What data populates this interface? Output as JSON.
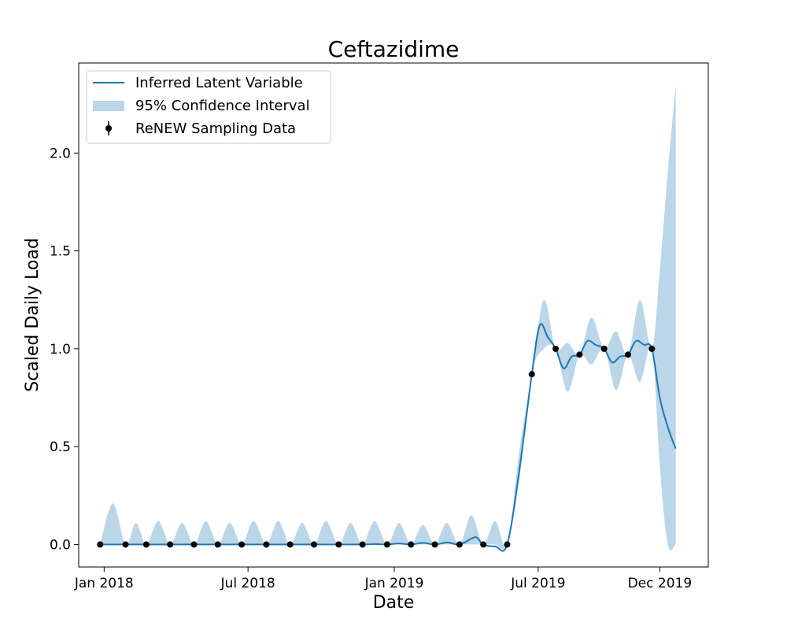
{
  "chart_data": {
    "type": "line",
    "title": "Ceftazidime",
    "xlabel": "Date",
    "ylabel": "Scaled Daily Load",
    "xlim": [
      "2017-11-30",
      "2020-01-31"
    ],
    "ylim": [
      -0.115,
      2.46
    ],
    "x_ticks": [
      {
        "date": "2018-01-01",
        "label": "Jan 2018"
      },
      {
        "date": "2018-07-01",
        "label": "Jul 2018"
      },
      {
        "date": "2019-01-01",
        "label": "Jan 2019"
      },
      {
        "date": "2019-07-01",
        "label": "Jul 2019"
      },
      {
        "date": "2019-12-01",
        "label": "Dec 2019"
      }
    ],
    "y_ticks": [
      {
        "value": 0.0,
        "label": "0.0"
      },
      {
        "value": 0.5,
        "label": "0.5"
      },
      {
        "value": 1.0,
        "label": "1.0"
      },
      {
        "value": 1.5,
        "label": "1.5"
      },
      {
        "value": 2.0,
        "label": "2.0"
      }
    ],
    "legend": {
      "placement": "top-left",
      "entries": [
        {
          "label": "Inferred Latent Variable",
          "kind": "line"
        },
        {
          "label": "95% Confidence Interval",
          "kind": "band"
        },
        {
          "label": "ReNEW Sampling Data",
          "kind": "errorbar"
        }
      ]
    },
    "colors": {
      "line": "#1f77b4",
      "band": "#1f77b4",
      "band_opacity": 0.3,
      "points": "#000000"
    },
    "series": [
      {
        "name": "ReNEW Sampling Data",
        "kind": "points",
        "x": [
          "2017-12-27",
          "2018-01-28",
          "2018-02-23",
          "2018-03-25",
          "2018-04-24",
          "2018-05-24",
          "2018-06-23",
          "2018-07-24",
          "2018-08-23",
          "2018-09-22",
          "2018-10-23",
          "2018-11-22",
          "2018-12-23",
          "2019-01-22",
          "2019-02-21",
          "2019-03-24",
          "2019-04-23",
          "2019-05-23",
          "2019-06-23",
          "2019-07-23",
          "2019-08-22",
          "2019-09-22",
          "2019-10-22",
          "2019-11-21"
        ],
        "y": [
          0,
          0,
          0,
          0,
          0,
          0,
          0,
          0,
          0,
          0,
          0,
          0,
          0,
          0,
          0,
          0,
          0,
          0,
          0.87,
          1.0,
          0.97,
          1.0,
          0.97,
          1.0
        ]
      },
      {
        "name": "Inferred Latent Variable",
        "kind": "line",
        "x": [
          "2017-12-27",
          "2018-01-28",
          "2018-02-23",
          "2018-03-25",
          "2018-04-24",
          "2018-05-24",
          "2018-06-23",
          "2018-07-24",
          "2018-08-23",
          "2018-09-22",
          "2018-10-23",
          "2018-11-22",
          "2018-12-08",
          "2018-12-23",
          "2019-01-07",
          "2019-01-22",
          "2019-02-06",
          "2019-02-21",
          "2019-03-09",
          "2019-03-24",
          "2019-04-08",
          "2019-04-15",
          "2019-04-23",
          "2019-05-08",
          "2019-05-23",
          "2019-06-08",
          "2019-06-23",
          "2019-07-03",
          "2019-07-13",
          "2019-07-23",
          "2019-08-02",
          "2019-08-12",
          "2019-08-22",
          "2019-09-01",
          "2019-09-11",
          "2019-09-22",
          "2019-10-02",
          "2019-10-12",
          "2019-10-22",
          "2019-11-01",
          "2019-11-11",
          "2019-11-21",
          "2019-12-01",
          "2019-12-11",
          "2019-12-21"
        ],
        "y": [
          0,
          0,
          0,
          0,
          0,
          0,
          0,
          0,
          0,
          0,
          0,
          0,
          0.002,
          0,
          0.005,
          0,
          0.008,
          0,
          0.01,
          0,
          0.03,
          0.035,
          0,
          -0.01,
          0,
          0.4,
          0.87,
          1.12,
          1.06,
          1.0,
          0.9,
          0.96,
          0.97,
          1.04,
          1.02,
          1.0,
          0.93,
          0.96,
          0.97,
          1.04,
          1.02,
          1.0,
          0.75,
          0.6,
          0.49
        ]
      },
      {
        "name": "95% Confidence Interval",
        "kind": "band",
        "x": [
          "2017-12-27",
          "2018-01-12",
          "2018-01-28",
          "2018-02-10",
          "2018-02-23",
          "2018-03-10",
          "2018-03-25",
          "2018-04-09",
          "2018-04-24",
          "2018-05-09",
          "2018-05-24",
          "2018-06-08",
          "2018-06-23",
          "2018-07-08",
          "2018-07-24",
          "2018-08-08",
          "2018-08-23",
          "2018-09-07",
          "2018-09-22",
          "2018-10-07",
          "2018-10-23",
          "2018-11-07",
          "2018-11-22",
          "2018-12-07",
          "2018-12-23",
          "2019-01-07",
          "2019-01-22",
          "2019-02-06",
          "2019-02-21",
          "2019-03-08",
          "2019-03-24",
          "2019-04-08",
          "2019-04-23",
          "2019-05-08",
          "2019-05-23",
          "2019-06-08",
          "2019-06-23",
          "2019-07-08",
          "2019-07-23",
          "2019-08-07",
          "2019-08-22",
          "2019-09-06",
          "2019-09-22",
          "2019-10-07",
          "2019-10-22",
          "2019-11-06",
          "2019-11-21",
          "2019-12-01",
          "2019-12-11",
          "2019-12-21"
        ],
        "upper": [
          0,
          0.21,
          0,
          0.11,
          0,
          0.12,
          0,
          0.11,
          0,
          0.12,
          0,
          0.11,
          0,
          0.12,
          0,
          0.12,
          0,
          0.11,
          0,
          0.12,
          0,
          0.11,
          0,
          0.12,
          0,
          0.11,
          0,
          0.1,
          0,
          0.11,
          0,
          0.15,
          0,
          0.12,
          0,
          0.5,
          0.87,
          1.25,
          1.0,
          1.03,
          0.97,
          1.16,
          1.0,
          1.09,
          0.97,
          1.25,
          1.0,
          1.4,
          1.9,
          2.35
        ],
        "lower": [
          0,
          0,
          0,
          0,
          0,
          0,
          0,
          0,
          0,
          0,
          0,
          0,
          0,
          0,
          0,
          0,
          0,
          0,
          0,
          0,
          0,
          0,
          0,
          0,
          0,
          0,
          0,
          0,
          0,
          0,
          0,
          0,
          0,
          0,
          0,
          0.35,
          0.87,
          1.0,
          1.0,
          0.78,
          0.97,
          0.92,
          1.0,
          0.79,
          0.97,
          0.83,
          1.0,
          0.4,
          0.0,
          0.0
        ]
      }
    ]
  }
}
